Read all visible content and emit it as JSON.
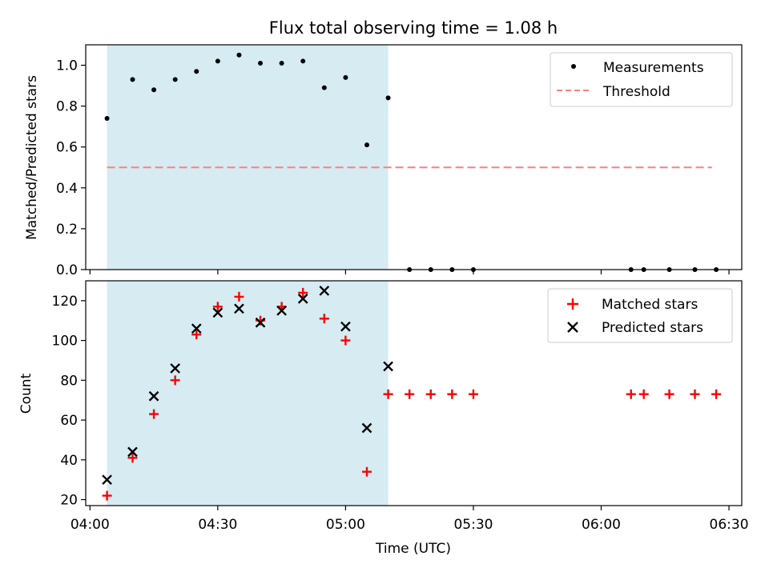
{
  "figure": {
    "title": "Flux total observing time = 1.08 h",
    "xlabel": "Time (UTC)",
    "x_ticks": [
      "04:00",
      "04:30",
      "05:00",
      "05:30",
      "06:00",
      "06:30"
    ]
  },
  "chart_data": [
    {
      "type": "scatter",
      "panel": "top",
      "ylabel": "Matched/Predicted stars",
      "xlim": [
        "03:59",
        "06:33"
      ],
      "ylim": [
        0,
        1.1
      ],
      "y_ticks": [
        "0.0",
        "0.2",
        "0.4",
        "0.6",
        "0.8",
        "1.0"
      ],
      "shaded_region": {
        "x_start": "04:04",
        "x_end": "05:10",
        "color": "#add8e6"
      },
      "legend_position": "top-right",
      "series": [
        {
          "name": "Measurements",
          "marker": "dot",
          "color": "#000000",
          "x": [
            "04:04",
            "04:10",
            "04:15",
            "04:20",
            "04:25",
            "04:30",
            "04:35",
            "04:40",
            "04:45",
            "04:50",
            "04:55",
            "05:00",
            "05:05",
            "05:10",
            "05:15",
            "05:20",
            "05:25",
            "05:30",
            "06:07",
            "06:10",
            "06:16",
            "06:22",
            "06:27"
          ],
          "y": [
            0.74,
            0.93,
            0.88,
            0.93,
            0.97,
            1.02,
            1.05,
            1.01,
            1.01,
            1.02,
            0.89,
            0.94,
            0.61,
            0.84,
            0,
            0,
            0,
            0,
            0,
            0,
            0,
            0,
            0
          ]
        },
        {
          "name": "Threshold",
          "line": "dashed",
          "color": "#ff7f7f",
          "x": [
            "04:04",
            "06:26"
          ],
          "y": [
            0.5,
            0.5
          ]
        }
      ]
    },
    {
      "type": "scatter",
      "panel": "bottom",
      "ylabel": "Count",
      "xlim": [
        "03:59",
        "06:33"
      ],
      "ylim": [
        17,
        130
      ],
      "y_ticks": [
        "20",
        "40",
        "60",
        "80",
        "100",
        "120"
      ],
      "shaded_region": {
        "x_start": "04:04",
        "x_end": "05:10",
        "color": "#add8e6"
      },
      "legend_position": "top-right",
      "series": [
        {
          "name": "Matched stars",
          "marker": "plus",
          "color": "#ff0000",
          "x": [
            "04:04",
            "04:10",
            "04:15",
            "04:20",
            "04:25",
            "04:30",
            "04:35",
            "04:40",
            "04:45",
            "04:50",
            "04:55",
            "05:00",
            "05:05",
            "05:10",
            "05:15",
            "05:20",
            "05:25",
            "05:30",
            "06:07",
            "06:10",
            "06:16",
            "06:22",
            "06:27"
          ],
          "y": [
            22,
            41,
            63,
            80,
            103,
            117,
            122,
            110,
            117,
            124,
            111,
            100,
            34,
            73,
            73,
            73,
            73,
            73,
            73,
            73,
            73,
            73,
            73
          ]
        },
        {
          "name": "Predicted stars",
          "marker": "x",
          "color": "#000000",
          "x": [
            "04:04",
            "04:10",
            "04:15",
            "04:20",
            "04:25",
            "04:30",
            "04:35",
            "04:40",
            "04:45",
            "04:50",
            "04:55",
            "05:00",
            "05:05",
            "05:10"
          ],
          "y": [
            30,
            44,
            72,
            86,
            106,
            114,
            116,
            109,
            115,
            121,
            125,
            107,
            56,
            87
          ]
        }
      ]
    }
  ]
}
